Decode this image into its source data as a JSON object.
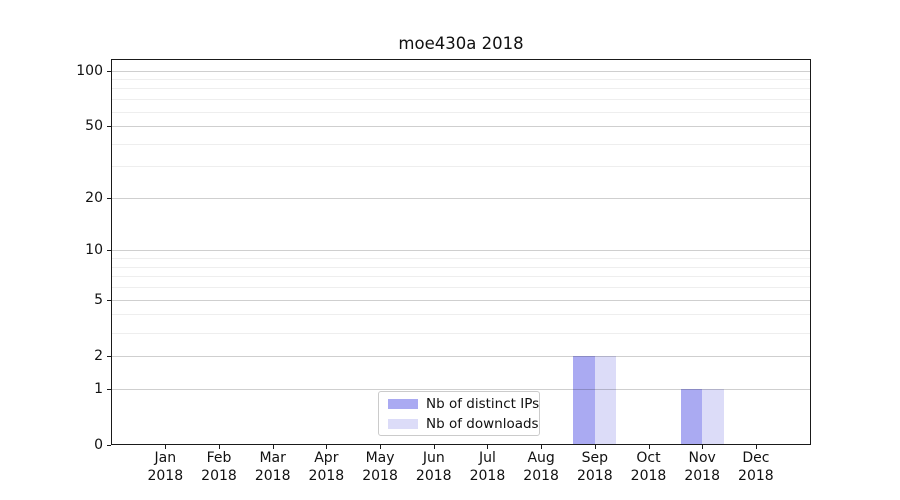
{
  "chart_data": {
    "type": "bar",
    "title": "moe430a 2018",
    "categories": [
      "Jan 2018",
      "Feb 2018",
      "Mar 2018",
      "Apr 2018",
      "May 2018",
      "Jun 2018",
      "Jul 2018",
      "Aug 2018",
      "Sep 2018",
      "Oct 2018",
      "Nov 2018",
      "Dec 2018"
    ],
    "series": [
      {
        "name": "Nb of distinct IPs",
        "color": "#aaaaf2",
        "values": [
          0,
          0,
          0,
          0,
          0,
          0,
          0,
          0,
          2,
          0,
          1,
          0
        ]
      },
      {
        "name": "Nb of downloads",
        "color": "#dcdcf8",
        "values": [
          0,
          0,
          0,
          0,
          0,
          0,
          0,
          0,
          2,
          0,
          1,
          0
        ]
      }
    ],
    "xlabel": "",
    "ylabel": "",
    "y_axis": {
      "scale": "log1p",
      "major_ticks": [
        0,
        1,
        2,
        5,
        10,
        20,
        50,
        100
      ],
      "tick_labels": [
        "0",
        "1",
        "2",
        "5",
        "10",
        "20",
        "50",
        "100"
      ],
      "minor_gridlines": [
        3,
        4,
        6,
        7,
        8,
        9,
        30,
        40,
        60,
        70,
        80,
        90
      ],
      "ylim": [
        0,
        113
      ]
    },
    "grid": true,
    "legend": {
      "position": "lower center",
      "entries": [
        "Nb of distinct IPs",
        "Nb of downloads"
      ]
    }
  },
  "style": {
    "background": "#ffffff",
    "major_grid_color": "rgba(0,0,0,0.19)",
    "minor_grid_color": "rgba(0,0,0,0.065)",
    "spine_color": "#1a1a1a",
    "text_color": "#111111"
  }
}
